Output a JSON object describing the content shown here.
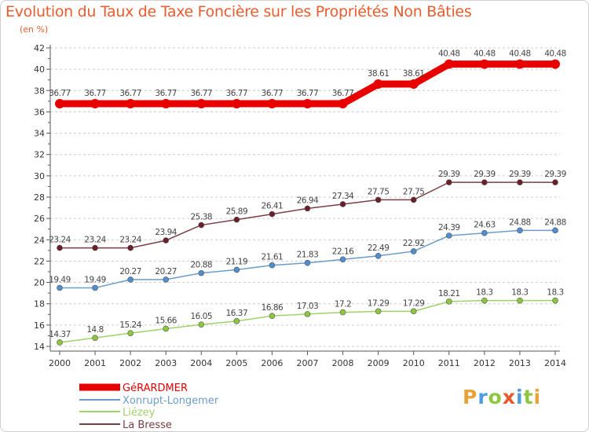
{
  "colors": {
    "title": "#e85d30",
    "axis": "#555555",
    "grid": "#cccccc"
  },
  "logo": {
    "text": "Proxiti",
    "letters": [
      {
        "ch": "P",
        "color": "#e8a23a"
      },
      {
        "ch": "r",
        "color": "#4d9be0"
      },
      {
        "ch": "o",
        "color": "#8dc63f"
      },
      {
        "ch": "x",
        "color": "#e8572a"
      },
      {
        "ch": "i",
        "color": "#4d9be0"
      },
      {
        "ch": "t",
        "color": "#8dc63f"
      },
      {
        "ch": "i",
        "color": "#e8a23a"
      }
    ]
  },
  "chart_data": {
    "type": "line",
    "title": "Evolution du Taux de Taxe Foncière sur les Propriétés Non Bâties",
    "subtitle": "(en %)",
    "x": [
      "2000",
      "2001",
      "2002",
      "2003",
      "2004",
      "2005",
      "2006",
      "2007",
      "2008",
      "2009",
      "2010",
      "2011",
      "2012",
      "2013",
      "2014"
    ],
    "ylim": [
      14,
      42
    ],
    "yticks": [
      14,
      16,
      18,
      20,
      22,
      24,
      26,
      28,
      30,
      32,
      34,
      36,
      38,
      40,
      42
    ],
    "grid": true,
    "legend_position": "bottom-left",
    "series": [
      {
        "name": "GéRARDMER",
        "color": "#e80000",
        "width": 9,
        "marker": "#e80000",
        "markerR": 6,
        "values": [
          36.77,
          36.77,
          36.77,
          36.77,
          36.77,
          36.77,
          36.77,
          36.77,
          36.77,
          38.61,
          38.61,
          40.48,
          40.48,
          40.48,
          40.48
        ],
        "labels": [
          "36.77",
          "36.77",
          "36.77",
          "36.77",
          "36.77",
          "36.77",
          "36.77",
          "36.77",
          "36.77",
          "38.61",
          "38.61",
          "40.48",
          "40.48",
          "40.48",
          "40.48"
        ]
      },
      {
        "name": "Xonrupt-Longemer",
        "color": "#6d9cc8",
        "width": 1.5,
        "marker": "#4f8fd0",
        "markerR": 3.5,
        "values": [
          19.49,
          19.49,
          20.27,
          20.27,
          20.88,
          21.19,
          21.61,
          21.83,
          22.16,
          22.49,
          22.92,
          24.39,
          24.63,
          24.88,
          24.88
        ],
        "labels": [
          "19.49",
          "19.49",
          "20.27",
          "20.27",
          "20.88",
          "21.19",
          "21.61",
          "21.83",
          "22.16",
          "22.49",
          "22.92",
          "24.39",
          "24.63",
          "24.88",
          "24.88"
        ]
      },
      {
        "name": "Liézey",
        "color": "#9fd36a",
        "width": 1.5,
        "marker": "#8dc63f",
        "markerR": 3.5,
        "values": [
          14.37,
          14.8,
          15.24,
          15.66,
          16.05,
          16.37,
          16.86,
          17.03,
          17.2,
          17.29,
          17.29,
          18.21,
          18.3,
          18.3,
          18.3
        ],
        "labels": [
          "14.37",
          "14.8",
          "15.24",
          "15.66",
          "16.05",
          "16.37",
          "16.86",
          "17.03",
          "17.2",
          "17.29",
          "17.29",
          "18.21",
          "18.3",
          "18.3",
          "18.3"
        ]
      },
      {
        "name": "La Bresse",
        "color": "#7a3f45",
        "width": 1.5,
        "marker": "#6b1f2a",
        "markerR": 3.5,
        "values": [
          23.24,
          23.24,
          23.24,
          23.94,
          25.38,
          25.89,
          26.41,
          26.94,
          27.34,
          27.75,
          27.75,
          29.39,
          29.39,
          29.39,
          29.39
        ],
        "labels": [
          "23.24",
          "23.24",
          "23.24",
          "23.94",
          "25.38",
          "25.89",
          "26.41",
          "26.94",
          "27.34",
          "27.75",
          "27.75",
          "29.39",
          "29.39",
          "29.39",
          "29.39"
        ]
      }
    ]
  }
}
